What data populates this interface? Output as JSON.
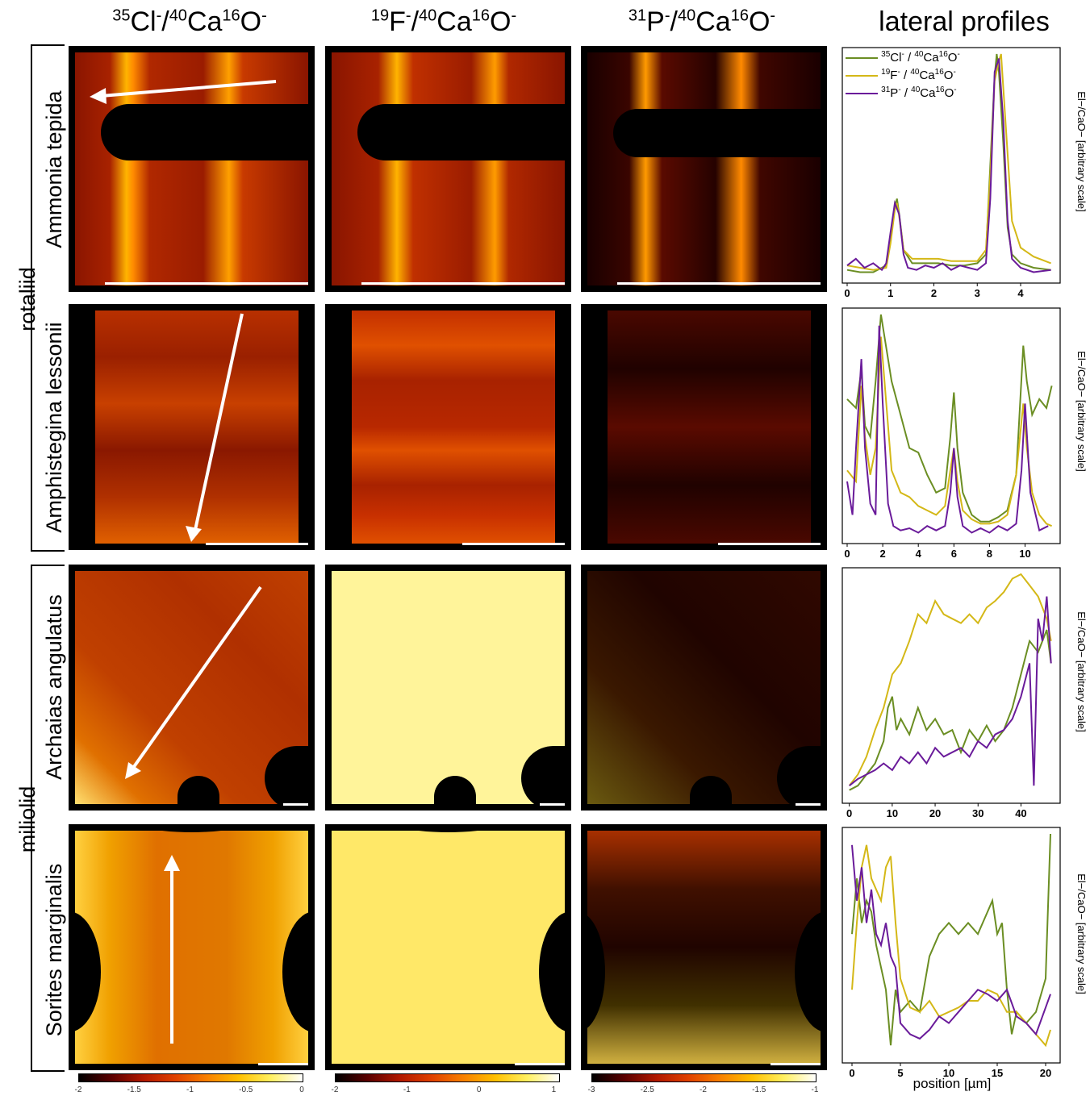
{
  "column_headers": {
    "cl": {
      "iso": "35",
      "el": "Cl",
      "chg": "-",
      "sep": "/",
      "iso2": "40",
      "el2": "Ca",
      "iso3": "16",
      "el3": "O",
      "chg2": "-"
    },
    "f": {
      "iso": "19",
      "el": "F",
      "chg": "-",
      "sep": "/",
      "iso2": "40",
      "el2": "Ca",
      "iso3": "16",
      "el3": "O",
      "chg2": "-"
    },
    "p": {
      "iso": "31",
      "el": "P",
      "chg": "-",
      "sep": "/",
      "iso2": "40",
      "el2": "Ca",
      "iso3": "16",
      "el3": "O",
      "chg2": "-"
    },
    "profiles": "lateral profiles"
  },
  "groups": {
    "rotaliid": "rotaliid",
    "miliolid": "miliolid"
  },
  "species": [
    "Ammonia tepida",
    "Amphistegina lessonii",
    "Archaias angulatus",
    "Sorites marginalis"
  ],
  "legend": [
    {
      "iso": "35",
      "el": "Cl",
      "iso2": "40",
      "iso3": "16",
      "color": "#6b8e23"
    },
    {
      "iso": "19",
      "el": "F",
      "iso2": "40",
      "iso3": "16",
      "color": "#d4b817"
    },
    {
      "iso": "31",
      "el": "P",
      "iso2": "40",
      "iso3": "16",
      "color": "#6a1b9a"
    }
  ],
  "legend_text": {
    "slash": " / ",
    "ca": "Ca",
    "o": "O",
    "neg": "-"
  },
  "ylabel": "El−/CaO− [arbitrary scale]",
  "xlabel": "position [µm]",
  "colors": {
    "cl": "#6b8e23",
    "f": "#d4b817",
    "p": "#6a1b9a"
  },
  "colorbars": [
    {
      "ticks": [
        "-2",
        "-1.5",
        "-1",
        "-0.5",
        "0"
      ]
    },
    {
      "ticks": [
        "-2",
        "-1",
        "0",
        "1"
      ]
    },
    {
      "ticks": [
        "-3",
        "-2.5",
        "-2",
        "-1.5",
        "-1"
      ]
    }
  ],
  "chart_data": [
    {
      "type": "line",
      "title": "Ammonia tepida",
      "xlabel": "position [µm]",
      "ylabel": "El−/CaO− [arbitrary scale]",
      "xlim": [
        0,
        4.8
      ],
      "xticks": [
        "0",
        "1",
        "2",
        "3",
        "4"
      ],
      "series": [
        {
          "name": "35Cl- / 40Ca16O-",
          "x": [
            0,
            0.3,
            0.6,
            0.9,
            1.0,
            1.1,
            1.15,
            1.2,
            1.3,
            1.5,
            1.8,
            2.1,
            2.4,
            2.7,
            3.0,
            3.2,
            3.3,
            3.4,
            3.45,
            3.5,
            3.6,
            3.7,
            3.8,
            4.0,
            4.3,
            4.7
          ],
          "y": [
            0.03,
            0.02,
            0.02,
            0.05,
            0.18,
            0.32,
            0.35,
            0.28,
            0.12,
            0.06,
            0.06,
            0.06,
            0.05,
            0.05,
            0.06,
            0.1,
            0.5,
            0.9,
            1.0,
            0.92,
            0.6,
            0.22,
            0.1,
            0.06,
            0.04,
            0.03
          ]
        },
        {
          "name": "19F- / 40Ca16O-",
          "x": [
            0,
            0.3,
            0.6,
            0.9,
            1.0,
            1.1,
            1.15,
            1.2,
            1.3,
            1.5,
            1.8,
            2.1,
            2.4,
            2.7,
            3.0,
            3.2,
            3.3,
            3.4,
            3.5,
            3.55,
            3.6,
            3.7,
            3.8,
            4.0,
            4.3,
            4.7
          ],
          "y": [
            0.05,
            0.04,
            0.03,
            0.04,
            0.15,
            0.3,
            0.33,
            0.27,
            0.12,
            0.08,
            0.08,
            0.08,
            0.07,
            0.07,
            0.07,
            0.12,
            0.45,
            0.88,
            0.97,
            1.0,
            0.85,
            0.55,
            0.25,
            0.13,
            0.09,
            0.06
          ]
        },
        {
          "name": "31P- / 40Ca16O-",
          "x": [
            0,
            0.2,
            0.4,
            0.6,
            0.8,
            0.9,
            1.0,
            1.1,
            1.2,
            1.3,
            1.4,
            1.6,
            1.8,
            2.0,
            2.2,
            2.4,
            2.6,
            2.8,
            3.0,
            3.2,
            3.3,
            3.4,
            3.5,
            3.6,
            3.7,
            3.8,
            4.0,
            4.3,
            4.7
          ],
          "y": [
            0.05,
            0.08,
            0.04,
            0.06,
            0.03,
            0.06,
            0.2,
            0.33,
            0.28,
            0.1,
            0.04,
            0.03,
            0.05,
            0.04,
            0.06,
            0.03,
            0.05,
            0.04,
            0.03,
            0.06,
            0.35,
            0.92,
            0.98,
            0.7,
            0.25,
            0.08,
            0.04,
            0.02,
            0.03
          ]
        }
      ]
    },
    {
      "type": "line",
      "title": "Amphistegina lessonii",
      "xlabel": "position [µm]",
      "ylabel": "El−/CaO− [arbitrary scale]",
      "xlim": [
        0,
        11.7
      ],
      "xticks": [
        "0",
        "2",
        "4",
        "6",
        "8",
        "10"
      ],
      "series": [
        {
          "name": "35Cl- / 40Ca16O-",
          "x": [
            0,
            0.5,
            0.8,
            1.0,
            1.3,
            1.6,
            1.9,
            2.2,
            2.5,
            3.0,
            3.5,
            4.0,
            4.5,
            5.0,
            5.5,
            5.8,
            6.0,
            6.2,
            6.5,
            7.0,
            7.5,
            8.0,
            8.5,
            9.0,
            9.5,
            9.9,
            10.1,
            10.4,
            10.8,
            11.2,
            11.5
          ],
          "y": [
            0.62,
            0.58,
            0.75,
            0.5,
            0.45,
            0.7,
            1.0,
            0.85,
            0.7,
            0.55,
            0.4,
            0.38,
            0.28,
            0.2,
            0.22,
            0.45,
            0.65,
            0.4,
            0.2,
            0.1,
            0.07,
            0.07,
            0.09,
            0.12,
            0.28,
            0.86,
            0.7,
            0.55,
            0.62,
            0.58,
            0.68
          ]
        },
        {
          "name": "19F- / 40Ca16O-",
          "x": [
            0,
            0.5,
            0.8,
            1.0,
            1.3,
            1.6,
            1.9,
            2.2,
            2.5,
            3.0,
            3.5,
            4.0,
            4.5,
            5.0,
            5.5,
            5.8,
            6.0,
            6.2,
            6.5,
            7.0,
            7.5,
            8.0,
            8.5,
            9.0,
            9.5,
            9.9,
            10.1,
            10.4,
            10.8,
            11.2,
            11.5
          ],
          "y": [
            0.3,
            0.25,
            0.68,
            0.45,
            0.28,
            0.4,
            0.9,
            0.6,
            0.3,
            0.2,
            0.18,
            0.14,
            0.12,
            0.1,
            0.14,
            0.3,
            0.4,
            0.25,
            0.12,
            0.08,
            0.06,
            0.06,
            0.07,
            0.1,
            0.28,
            0.6,
            0.4,
            0.2,
            0.1,
            0.06,
            0.05
          ]
        },
        {
          "name": "31P- / 40Ca16O-",
          "x": [
            0,
            0.3,
            0.5,
            0.8,
            1.0,
            1.3,
            1.6,
            1.8,
            2.0,
            2.3,
            2.6,
            3.0,
            3.5,
            4.0,
            4.5,
            5.0,
            5.5,
            5.8,
            6.0,
            6.2,
            6.5,
            7.0,
            7.5,
            8.0,
            8.5,
            9.0,
            9.5,
            9.8,
            10.0,
            10.3,
            10.8,
            11.3
          ],
          "y": [
            0.25,
            0.1,
            0.4,
            0.8,
            0.4,
            0.15,
            0.1,
            0.95,
            0.6,
            0.15,
            0.05,
            0.03,
            0.04,
            0.02,
            0.05,
            0.03,
            0.05,
            0.2,
            0.4,
            0.18,
            0.05,
            0.02,
            0.04,
            0.02,
            0.05,
            0.03,
            0.06,
            0.3,
            0.6,
            0.2,
            0.03,
            0.05
          ]
        }
      ]
    },
    {
      "type": "line",
      "title": "Archaias angulatus",
      "xlabel": "position [µm]",
      "ylabel": "El−/CaO− [arbitrary scale]",
      "xlim": [
        -0.5,
        48
      ],
      "xticks": [
        "0",
        "10",
        "20",
        "30",
        "40"
      ],
      "series": [
        {
          "name": "35Cl- / 40Ca16O-",
          "x": [
            0,
            2,
            4,
            6,
            8,
            9,
            10,
            11,
            12,
            14,
            16,
            18,
            20,
            22,
            24,
            26,
            28,
            30,
            32,
            34,
            36,
            38,
            40,
            42,
            44,
            46,
            47
          ],
          "y": [
            0.03,
            0.05,
            0.1,
            0.15,
            0.25,
            0.4,
            0.45,
            0.3,
            0.35,
            0.28,
            0.4,
            0.3,
            0.35,
            0.28,
            0.3,
            0.2,
            0.3,
            0.25,
            0.32,
            0.25,
            0.3,
            0.4,
            0.55,
            0.7,
            0.65,
            0.75,
            0.6
          ]
        },
        {
          "name": "19F- / 40Ca16O-",
          "x": [
            0,
            2,
            4,
            6,
            8,
            10,
            12,
            14,
            16,
            18,
            20,
            22,
            24,
            26,
            28,
            30,
            32,
            34,
            36,
            38,
            40,
            42,
            44,
            46,
            47
          ],
          "y": [
            0.05,
            0.1,
            0.18,
            0.3,
            0.4,
            0.55,
            0.6,
            0.7,
            0.82,
            0.78,
            0.88,
            0.82,
            0.8,
            0.78,
            0.82,
            0.78,
            0.85,
            0.88,
            0.92,
            0.98,
            1.0,
            0.95,
            0.9,
            0.8,
            0.7
          ]
        },
        {
          "name": "31P- / 40Ca16O-",
          "x": [
            0,
            2,
            4,
            6,
            8,
            10,
            12,
            14,
            16,
            18,
            20,
            22,
            24,
            26,
            28,
            30,
            32,
            34,
            36,
            38,
            40,
            42,
            43,
            44,
            45,
            46,
            47
          ],
          "y": [
            0.05,
            0.08,
            0.1,
            0.12,
            0.15,
            0.12,
            0.18,
            0.15,
            0.2,
            0.15,
            0.22,
            0.18,
            0.2,
            0.22,
            0.18,
            0.25,
            0.22,
            0.28,
            0.3,
            0.35,
            0.45,
            0.6,
            0.05,
            0.8,
            0.7,
            0.9,
            0.6
          ]
        }
      ]
    },
    {
      "type": "line",
      "title": "Sorites marginalis",
      "xlabel": "position [µm]",
      "ylabel": "El−/CaO− [arbitrary scale]",
      "xlim": [
        -0.5,
        21
      ],
      "xticks": [
        "0",
        "5",
        "10",
        "15",
        "20"
      ],
      "series": [
        {
          "name": "35Cl- / 40Ca16O-",
          "x": [
            0,
            0.5,
            1,
            1.5,
            2,
            2.5,
            3,
            3.5,
            4,
            4.5,
            5,
            6,
            7,
            8,
            9,
            10,
            11,
            12,
            13,
            14,
            14.5,
            15,
            15.5,
            16,
            16.5,
            17,
            18,
            19,
            20,
            20.5
          ],
          "y": [
            0.55,
            0.8,
            0.6,
            0.7,
            0.65,
            0.5,
            0.4,
            0.3,
            0.05,
            0.3,
            0.2,
            0.25,
            0.2,
            0.45,
            0.55,
            0.6,
            0.55,
            0.6,
            0.55,
            0.65,
            0.7,
            0.55,
            0.6,
            0.3,
            0.1,
            0.2,
            0.15,
            0.2,
            0.35,
            1.0
          ]
        },
        {
          "name": "19F- / 40Ca16O-",
          "x": [
            0,
            0.5,
            1,
            1.5,
            2,
            2.5,
            3,
            3.5,
            4,
            4.5,
            5,
            6,
            7,
            8,
            9,
            10,
            11,
            12,
            13,
            14,
            15,
            16,
            17,
            18,
            19,
            20,
            20.5
          ],
          "y": [
            0.3,
            0.6,
            0.85,
            0.95,
            0.8,
            0.75,
            0.7,
            0.85,
            0.9,
            0.6,
            0.35,
            0.22,
            0.2,
            0.25,
            0.18,
            0.2,
            0.22,
            0.25,
            0.25,
            0.3,
            0.28,
            0.2,
            0.2,
            0.15,
            0.1,
            0.05,
            0.12
          ]
        },
        {
          "name": "31P- / 40Ca16O-",
          "x": [
            0,
            0.5,
            1,
            1.5,
            2,
            2.5,
            3,
            3.5,
            4,
            4.5,
            5,
            6,
            7,
            8,
            9,
            10,
            11,
            12,
            13,
            14,
            15,
            16,
            17,
            18,
            19,
            20,
            20.5
          ],
          "y": [
            0.95,
            0.7,
            0.85,
            0.6,
            0.75,
            0.55,
            0.5,
            0.6,
            0.45,
            0.4,
            0.15,
            0.1,
            0.08,
            0.12,
            0.18,
            0.15,
            0.2,
            0.25,
            0.3,
            0.28,
            0.25,
            0.3,
            0.18,
            0.15,
            0.1,
            0.22,
            0.28
          ]
        }
      ]
    }
  ]
}
